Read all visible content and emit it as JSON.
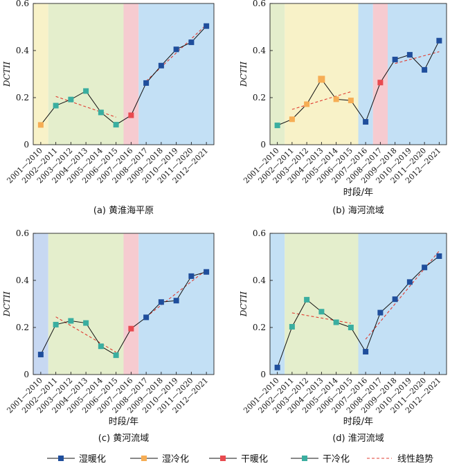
{
  "legend": {
    "items": [
      {
        "label": "湿暖化",
        "color": "#1f4e9c",
        "kind": "marker"
      },
      {
        "label": "湿冷化",
        "color": "#f6ad54",
        "kind": "marker"
      },
      {
        "label": "干暖化",
        "color": "#e84a4f",
        "kind": "marker"
      },
      {
        "label": "干冷化",
        "color": "#3aaea0",
        "kind": "marker"
      },
      {
        "label": "线性趋势",
        "color": "#e03c31",
        "kind": "dash"
      }
    ]
  },
  "band_colors": {
    "humid_warm": "#c3e0f5",
    "humid_cold": "#f8f2c8",
    "dry_warm": "#f6cbd0",
    "dry_cold": "#e4eecc",
    "humid_warm_alt": "#c7d8f2"
  },
  "chart_data": [
    {
      "type": "line",
      "caption": "(a) 黄淮海平原",
      "ylabel": "DCTII",
      "xlabel": "",
      "ylim": [
        0,
        0.6
      ],
      "yticks": [
        "0",
        "0.2",
        "0.4",
        "0.6"
      ],
      "categories": [
        "2001—2010",
        "2002—2011",
        "2003—2012",
        "2004—2013",
        "2005—2014",
        "2006—2015",
        "2007—2016",
        "2008—2017",
        "2009—2018",
        "2010—2019",
        "2011—2020",
        "2012—2021"
      ],
      "values": [
        0.084,
        0.166,
        0.192,
        0.228,
        0.137,
        0.085,
        0.125,
        0.262,
        0.336,
        0.405,
        0.435,
        0.504
      ],
      "types": [
        "humid_cold",
        "dry_cold",
        "dry_cold",
        "dry_cold",
        "dry_cold",
        "dry_cold",
        "dry_warm",
        "humid_warm",
        "humid_warm",
        "humid_warm",
        "humid_warm",
        "humid_warm"
      ],
      "bands": [
        {
          "from": 0,
          "to": 0,
          "type": "humid_cold"
        },
        {
          "from": 1,
          "to": 5,
          "type": "dry_cold"
        },
        {
          "from": 6,
          "to": 6,
          "type": "dry_warm"
        },
        {
          "from": 7,
          "to": 11,
          "type": "humid_warm"
        }
      ],
      "trends": [
        {
          "from": 1,
          "to": 5,
          "y": [
            0.205,
            0.117
          ]
        },
        {
          "from": 7,
          "to": 11,
          "y": [
            0.27,
            0.51
          ]
        }
      ]
    },
    {
      "type": "line",
      "caption": "(b) 海河流域",
      "ylabel": "DCTII",
      "xlabel": "时段/年",
      "ylim": [
        0,
        0.6
      ],
      "yticks": [
        "0",
        "0.2",
        "0.4",
        "0.6"
      ],
      "categories": [
        "2001—2010",
        "2002—2011",
        "2003—2012",
        "2004—2013",
        "2005—2014",
        "2006—2015",
        "2007—2016",
        "2008—2017",
        "2009—2018",
        "2010—2019",
        "2011—2020",
        "2012—2021"
      ],
      "values": [
        0.082,
        0.108,
        0.172,
        0.278,
        0.193,
        0.188,
        0.097,
        0.264,
        0.362,
        0.382,
        0.318,
        0.442
      ],
      "types": [
        "dry_cold",
        "humid_cold",
        "humid_cold",
        "humid_cold",
        "humid_cold",
        "humid_cold",
        "humid_warm",
        "dry_warm",
        "humid_warm",
        "humid_warm",
        "humid_warm",
        "humid_warm"
      ],
      "bands": [
        {
          "from": 0,
          "to": 0,
          "type": "dry_cold"
        },
        {
          "from": 1,
          "to": 5,
          "type": "humid_cold"
        },
        {
          "from": 6,
          "to": 6,
          "type": "humid_warm"
        },
        {
          "from": 7,
          "to": 7,
          "type": "dry_warm"
        },
        {
          "from": 8,
          "to": 11,
          "type": "humid_warm"
        }
      ],
      "trends": [
        {
          "from": 1,
          "to": 5,
          "y": [
            0.15,
            0.225
          ]
        },
        {
          "from": 8,
          "to": 11,
          "y": [
            0.345,
            0.395
          ]
        }
      ]
    },
    {
      "type": "line",
      "caption": "(c) 黄河流域",
      "ylabel": "DCTII",
      "xlabel": "时段/年",
      "ylim": [
        0,
        0.6
      ],
      "yticks": [
        "0",
        "0.2",
        "0.4",
        "0.6"
      ],
      "categories": [
        "2001—2010",
        "2002—2011",
        "2003—2012",
        "2004—2013",
        "2005—2014",
        "2006—2015",
        "2007—2016",
        "2008—2017",
        "2009—2018",
        "2010—2019",
        "2011—2020",
        "2012—2021"
      ],
      "values": [
        0.085,
        0.212,
        0.228,
        0.219,
        0.12,
        0.082,
        0.195,
        0.243,
        0.308,
        0.314,
        0.418,
        0.436
      ],
      "types": [
        "humid_warm",
        "dry_cold",
        "dry_cold",
        "dry_cold",
        "dry_cold",
        "dry_cold",
        "dry_warm",
        "humid_warm",
        "humid_warm",
        "humid_warm",
        "humid_warm",
        "humid_warm"
      ],
      "bands": [
        {
          "from": 0,
          "to": 0,
          "type": "humid_warm_alt"
        },
        {
          "from": 1,
          "to": 5,
          "type": "dry_cold"
        },
        {
          "from": 6,
          "to": 6,
          "type": "dry_warm"
        },
        {
          "from": 7,
          "to": 11,
          "type": "humid_warm"
        }
      ],
      "trends": [
        {
          "from": 1,
          "to": 5,
          "y": [
            0.245,
            0.095
          ]
        },
        {
          "from": 7,
          "to": 11,
          "y": [
            0.245,
            0.445
          ]
        }
      ]
    },
    {
      "type": "line",
      "caption": "(d) 淮河流域",
      "ylabel": "DCTII",
      "xlabel": "时段/年",
      "ylim": [
        0,
        0.6
      ],
      "yticks": [
        "0",
        "0.2",
        "0.4",
        "0.6"
      ],
      "categories": [
        "2001—2010",
        "2002—2011",
        "2003—2012",
        "2004—2013",
        "2005—2014",
        "2006—2015",
        "2007—2016",
        "2008—2017",
        "2009—2018",
        "2010—2019",
        "2011—2020",
        "2012—2021"
      ],
      "values": [
        0.03,
        0.203,
        0.318,
        0.267,
        0.222,
        0.2,
        0.097,
        0.263,
        0.32,
        0.393,
        0.455,
        0.503
      ],
      "types": [
        "humid_warm",
        "dry_cold",
        "dry_cold",
        "dry_cold",
        "dry_cold",
        "dry_cold",
        "humid_warm",
        "humid_warm",
        "humid_warm",
        "humid_warm",
        "humid_warm",
        "humid_warm"
      ],
      "bands": [
        {
          "from": 0,
          "to": 0,
          "type": "humid_warm"
        },
        {
          "from": 1,
          "to": 5,
          "type": "dry_cold"
        },
        {
          "from": 6,
          "to": 11,
          "type": "humid_warm"
        }
      ],
      "trends": [
        {
          "from": 1,
          "to": 5,
          "y": [
            0.262,
            0.218
          ]
        },
        {
          "from": 6,
          "to": 11,
          "y": [
            0.15,
            0.525
          ]
        }
      ]
    }
  ]
}
